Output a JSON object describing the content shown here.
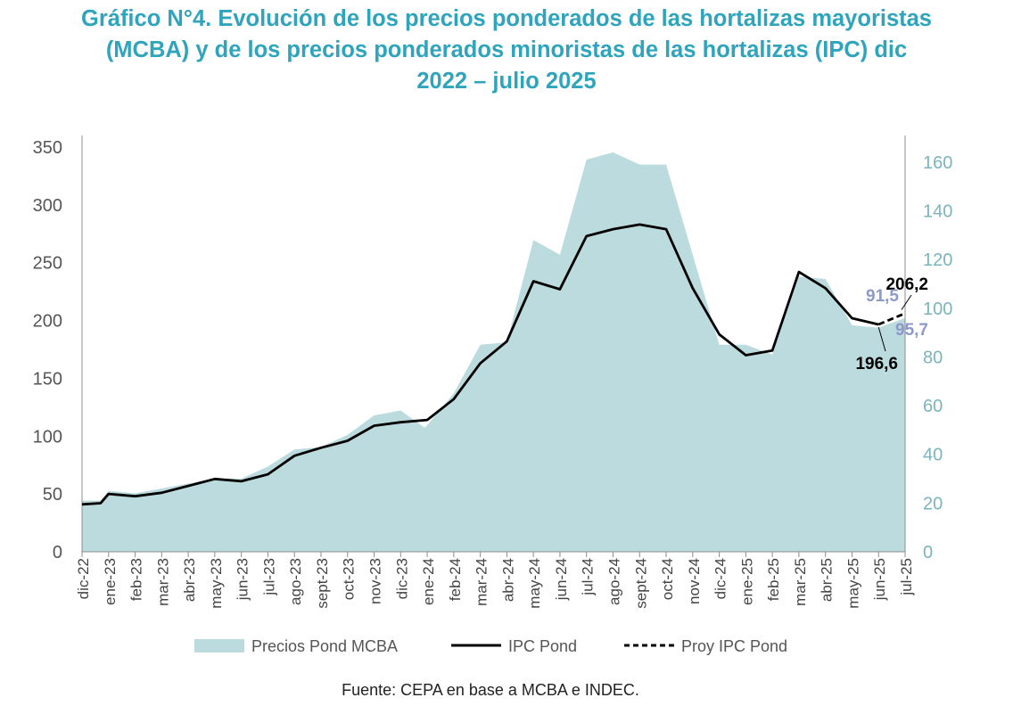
{
  "title_lines": [
    "Gráfico N°4. Evolución de los precios ponderados de las hortalizas mayoristas",
    "(MCBA) y de los precios ponderados minoristas de las hortalizas (IPC) dic",
    "2022 – julio 2025"
  ],
  "source": "Fuente: CEPA en base a MCBA e INDEC.",
  "colors": {
    "title": "#2fa4bd",
    "area": "#bcdbde",
    "line": "#000000",
    "left_axis_text": "#555555",
    "right_axis_text": "#7ab5bd",
    "annot_blue": "#8d99c9"
  },
  "chart_data": {
    "type": "area",
    "categories": [
      "dic-22",
      "ene-23",
      "feb-23",
      "mar-23",
      "abr-23",
      "may-23",
      "jun-23",
      "jul-23",
      "ago-23",
      "sept-23",
      "oct-23",
      "nov-23",
      "dic-23",
      "ene-24",
      "feb-24",
      "mar-24",
      "abr-24",
      "may-24",
      "jun-24",
      "jul-24",
      "ago-24",
      "sept-24",
      "oct-24",
      "nov-24",
      "dic-24",
      "ene-25",
      "feb-25",
      "mar-25",
      "abr-25",
      "may-25",
      "jun-25",
      "jul-25"
    ],
    "y_left": {
      "min": 0,
      "max": 350,
      "ticks": [
        0,
        50,
        100,
        150,
        200,
        250,
        300,
        350
      ]
    },
    "y_right": {
      "min": 0,
      "max": 168,
      "ticks": [
        0,
        20,
        40,
        60,
        80,
        100,
        120,
        140,
        160
      ]
    },
    "grid": false,
    "legend_position": "bottom",
    "series": [
      {
        "name": "Precios Pond MCBA",
        "kind": "area",
        "axis": "right",
        "points": [
          {
            "x": 0,
            "y": 21
          },
          {
            "x": 0.7,
            "y": 21
          },
          {
            "x": 1,
            "y": 25
          },
          {
            "x": 2,
            "y": 24
          },
          {
            "x": 3,
            "y": 26
          },
          {
            "x": 4,
            "y": 28
          },
          {
            "x": 5,
            "y": 30
          },
          {
            "x": 6,
            "y": 30
          },
          {
            "x": 7,
            "y": 35
          },
          {
            "x": 8,
            "y": 42
          },
          {
            "x": 9,
            "y": 43
          },
          {
            "x": 10,
            "y": 48
          },
          {
            "x": 11,
            "y": 56
          },
          {
            "x": 12,
            "y": 58
          },
          {
            "x": 12.9,
            "y": 51
          },
          {
            "x": 13,
            "y": 52
          },
          {
            "x": 14,
            "y": 65
          },
          {
            "x": 15,
            "y": 85
          },
          {
            "x": 16,
            "y": 86
          },
          {
            "x": 17,
            "y": 128
          },
          {
            "x": 18,
            "y": 122
          },
          {
            "x": 19,
            "y": 161
          },
          {
            "x": 20,
            "y": 164
          },
          {
            "x": 21,
            "y": 159
          },
          {
            "x": 22,
            "y": 159
          },
          {
            "x": 23,
            "y": 122
          },
          {
            "x": 24,
            "y": 85
          },
          {
            "x": 25,
            "y": 85
          },
          {
            "x": 26,
            "y": 81
          },
          {
            "x": 27,
            "y": 113
          },
          {
            "x": 28,
            "y": 112
          },
          {
            "x": 29,
            "y": 93
          },
          {
            "x": 30,
            "y": 92
          },
          {
            "x": 31,
            "y": 96
          }
        ]
      },
      {
        "name": "IPC Pond",
        "kind": "line",
        "axis": "left",
        "x": [
          0,
          0.7,
          1,
          2,
          3,
          4,
          5,
          6,
          7,
          8,
          9,
          10,
          11,
          12,
          13,
          14,
          15,
          16,
          17,
          18,
          19,
          20,
          21,
          22,
          23,
          24,
          25,
          26,
          27,
          28,
          29,
          30
        ],
        "values": [
          41,
          42,
          50,
          48,
          51,
          57,
          63,
          61,
          67,
          83,
          90,
          96,
          109,
          112,
          114,
          132,
          163,
          182,
          234,
          227,
          273,
          279,
          283,
          279,
          228,
          188,
          170,
          174,
          242,
          228,
          202,
          196.6
        ]
      },
      {
        "name": "Proy IPC Pond",
        "kind": "dashed",
        "axis": "left",
        "x": [
          30,
          31
        ],
        "values": [
          196.6,
          206.2
        ]
      }
    ],
    "annotations": [
      {
        "text": "206,2",
        "color": "black"
      },
      {
        "text": "91,5",
        "color": "blue"
      },
      {
        "text": "95,7",
        "color": "blue"
      },
      {
        "text": "196,6",
        "color": "black"
      }
    ]
  }
}
